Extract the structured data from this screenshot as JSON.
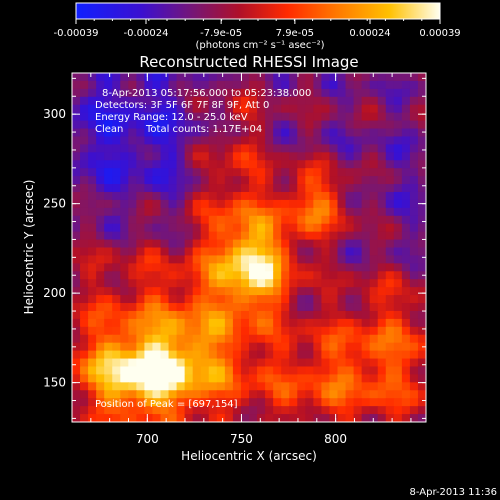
{
  "chart_data": {
    "type": "heatmap",
    "title": "Reconstructed RHESSI Image",
    "xlabel": "Heliocentric X (arcsec)",
    "ylabel": "Heliocentric Y (arcsec)",
    "x_range": [
      660,
      848
    ],
    "y_range": [
      128,
      323
    ],
    "x_ticks": [
      "700",
      "750",
      "800"
    ],
    "y_ticks": [
      "150",
      "200",
      "250",
      "300"
    ],
    "colorbar": {
      "tick_labels": [
        "-0.00039",
        "-0.00024",
        "-7.9e-05",
        "7.9e-05",
        "0.00024",
        "0.00039"
      ],
      "units": "(photons cm⁻² s⁻¹ asec⁻²)",
      "range": [
        -0.00039,
        0.00039
      ]
    },
    "annotations": [
      "8-Apr-2013 05:17:56.000 to 05:23:38.000",
      "Detectors: 3F 5F 6F 7F 8F 9F, Att 0",
      "Energy Range: 12.0 - 25.0 keV",
      "Clean",
      "Total counts: 1.17E+04",
      "Position of Peak = [697,154]"
    ],
    "peak": {
      "x": 697,
      "y": 154
    },
    "grid": false,
    "legend": "none"
  },
  "footer": {
    "timestamp": "8-Apr-2013 11:36"
  }
}
